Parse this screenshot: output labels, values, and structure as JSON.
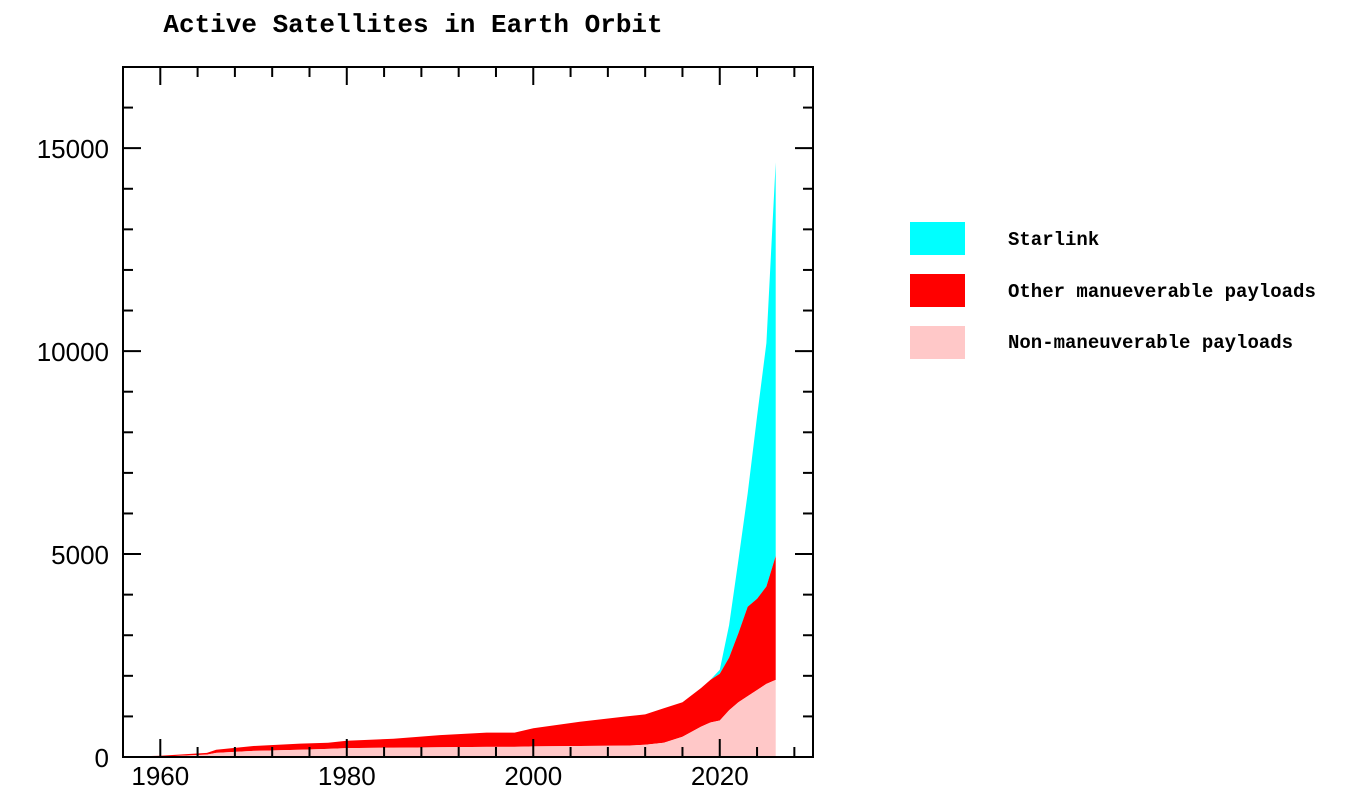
{
  "chart_data": {
    "type": "area",
    "stacked": true,
    "title": "Active Satellites in Earth Orbit",
    "xlabel": "",
    "ylabel": "",
    "xlim": [
      1956,
      2030
    ],
    "ylim": [
      0,
      17000
    ],
    "xticks": [
      1960,
      1980,
      2000,
      2020
    ],
    "xtick_labels": [
      "1960",
      "1980",
      "2000",
      "2020"
    ],
    "yticks": [
      0,
      5000,
      10000,
      15000
    ],
    "ytick_labels": [
      "0",
      "5000",
      "10000",
      "15000"
    ],
    "legend_position": "right",
    "x": [
      1958,
      1960,
      1965,
      1966,
      1970,
      1975,
      1978,
      1980,
      1985,
      1990,
      1995,
      1998,
      2000,
      2005,
      2010,
      2012,
      2014,
      2016,
      2018,
      2019,
      2020,
      2021,
      2022,
      2023,
      2024,
      2025,
      2026
    ],
    "series": [
      {
        "name": "Non-maneuverable payloads",
        "color": "#ffc8c8",
        "values": [
          5,
          10,
          60,
          100,
          150,
          180,
          200,
          220,
          230,
          240,
          250,
          250,
          260,
          270,
          280,
          300,
          350,
          500,
          750,
          850,
          900,
          1150,
          1350,
          1500,
          1650,
          1800,
          1900
        ]
      },
      {
        "name": "Other manueverable payloads",
        "color": "#ff0000",
        "values": [
          15,
          20,
          40,
          80,
          120,
          150,
          150,
          180,
          220,
          300,
          350,
          350,
          450,
          600,
          720,
          750,
          850,
          850,
          950,
          1050,
          1150,
          1300,
          1700,
          2200,
          2250,
          2400,
          3050
        ]
      },
      {
        "name": "Starlink",
        "color": "#00ffff",
        "values": [
          0,
          0,
          0,
          0,
          0,
          0,
          0,
          0,
          0,
          0,
          0,
          0,
          0,
          0,
          0,
          0,
          0,
          0,
          0,
          0,
          100,
          800,
          1800,
          2800,
          4500,
          6000,
          9700
        ]
      }
    ]
  }
}
